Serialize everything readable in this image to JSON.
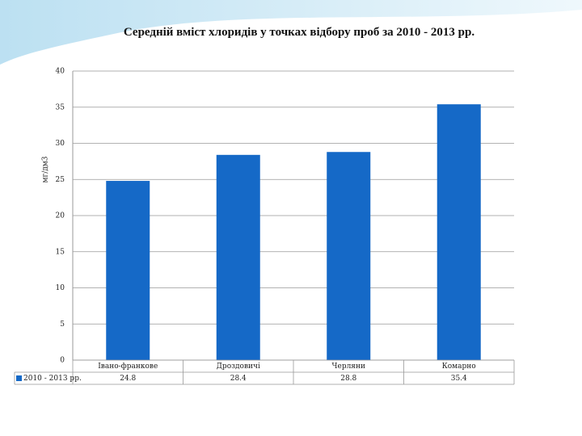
{
  "chart_data": {
    "type": "bar",
    "title": "Середній вміст хлоридів у точках відбору проб за 2010 - 2013 рр.",
    "y_label": "мг/дм3",
    "categories": [
      "Івано-франкове",
      "Дроздовичі",
      "Черляни",
      "Комарно"
    ],
    "series": [
      {
        "name": "2010 - 2013 рр.",
        "color": "#1569c7",
        "values": [
          24.8,
          28.4,
          28.8,
          35.4
        ]
      }
    ],
    "ylim": [
      0,
      40
    ],
    "yticks": [
      0,
      5,
      10,
      15,
      20,
      25,
      30,
      35,
      40
    ],
    "grid": true,
    "data_table": true
  }
}
